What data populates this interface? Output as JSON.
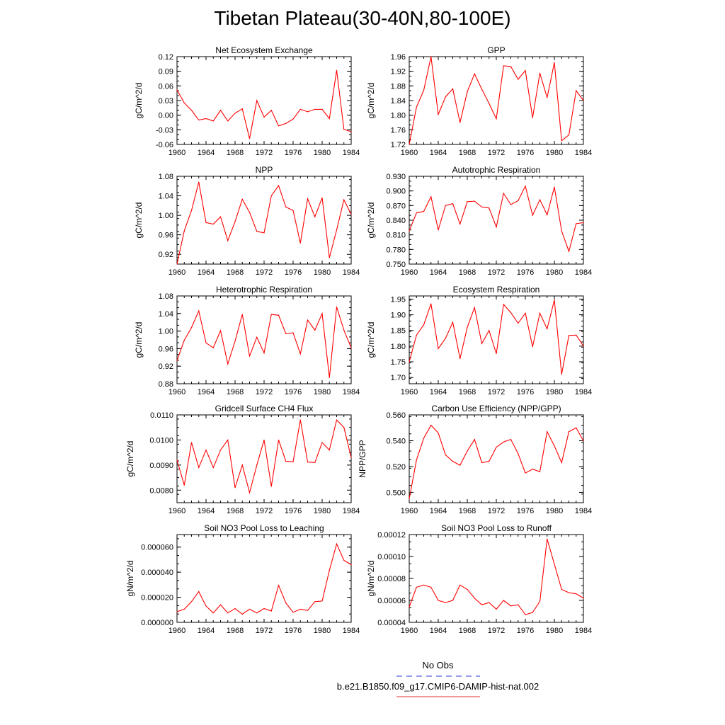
{
  "figure": {
    "title": "Tibetan Plateau(30-40N,80-100E)"
  },
  "legend": {
    "entries": [
      {
        "label": "No Obs",
        "color": "#3a3adc",
        "style": "dashed"
      },
      {
        "label": "b.e21.B1850.f09_g17.CMIP6-DAMIP-hist-nat.002",
        "color": "#e0303a",
        "style": "solid"
      }
    ]
  },
  "chart_data": [
    {
      "type": "line",
      "title": "Net Ecosystem Exchange",
      "ylabel": "gC/m^2/d",
      "xlim": [
        1960,
        1984
      ],
      "ylim": [
        -0.06,
        0.12
      ],
      "yticks": [
        "-0.06",
        "-0.03",
        "0.00",
        "0.03",
        "0.06",
        "0.09",
        "0.12"
      ],
      "xticks": [
        "1960",
        "1964",
        "1968",
        "1972",
        "1976",
        "1980",
        "1984"
      ],
      "color": "#ff0000",
      "x": [
        1960,
        1961,
        1962,
        1963,
        1964,
        1965,
        1966,
        1967,
        1968,
        1969,
        1970,
        1971,
        1972,
        1973,
        1974,
        1975,
        1976,
        1977,
        1978,
        1979,
        1980,
        1981,
        1982,
        1983,
        1984
      ],
      "values": [
        0.052,
        0.025,
        0.01,
        -0.01,
        -0.007,
        -0.012,
        0.01,
        -0.012,
        0.004,
        0.013,
        -0.048,
        0.03,
        -0.004,
        0.01,
        -0.022,
        -0.017,
        -0.008,
        0.012,
        0.007,
        0.012,
        0.012,
        -0.007,
        0.092,
        -0.029,
        -0.034
      ]
    },
    {
      "type": "line",
      "title": "GPP",
      "ylabel": "gC/m^2/d",
      "xlim": [
        1960,
        1984
      ],
      "ylim": [
        1.72,
        1.96
      ],
      "yticks": [
        "1.72",
        "1.76",
        "1.80",
        "1.84",
        "1.88",
        "1.92",
        "1.96"
      ],
      "xticks": [
        "1960",
        "1964",
        "1968",
        "1972",
        "1976",
        "1980",
        "1984"
      ],
      "color": "#ff0000",
      "x": [
        1960,
        1961,
        1962,
        1963,
        1964,
        1965,
        1966,
        1967,
        1968,
        1969,
        1970,
        1971,
        1972,
        1973,
        1974,
        1975,
        1976,
        1977,
        1978,
        1979,
        1980,
        1981,
        1982,
        1983,
        1984
      ],
      "values": [
        1.72,
        1.822,
        1.868,
        1.96,
        1.802,
        1.85,
        1.872,
        1.78,
        1.864,
        1.913,
        1.871,
        1.832,
        1.79,
        1.935,
        1.933,
        1.898,
        1.922,
        1.793,
        1.915,
        1.848,
        1.944,
        1.73,
        1.746,
        1.867,
        1.84
      ]
    },
    {
      "type": "line",
      "title": "NPP",
      "ylabel": "gC/m^2/d",
      "xlim": [
        1960,
        1984
      ],
      "ylim": [
        0.9,
        1.08
      ],
      "yticks": [
        "0.92",
        "0.96",
        "1.00",
        "1.04",
        "1.08"
      ],
      "xticks": [
        "1960",
        "1964",
        "1968",
        "1972",
        "1976",
        "1980",
        "1984"
      ],
      "color": "#ff0000",
      "x": [
        1960,
        1961,
        1962,
        1963,
        1964,
        1965,
        1966,
        1967,
        1968,
        1969,
        1970,
        1971,
        1972,
        1973,
        1974,
        1975,
        1976,
        1977,
        1978,
        1979,
        1980,
        1981,
        1982,
        1983,
        1984
      ],
      "values": [
        0.9,
        0.968,
        1.01,
        1.068,
        0.985,
        0.982,
        0.997,
        0.948,
        0.987,
        1.033,
        1.006,
        0.967,
        0.964,
        1.04,
        1.061,
        1.017,
        1.01,
        0.943,
        1.034,
        0.997,
        1.036,
        0.913,
        0.97,
        1.032,
        1.002
      ]
    },
    {
      "type": "line",
      "title": "Autotrophic Respiration",
      "ylabel": "gC/m^2/d",
      "xlim": [
        1960,
        1984
      ],
      "ylim": [
        0.75,
        0.93
      ],
      "yticks": [
        "0.750",
        "0.780",
        "0.810",
        "0.840",
        "0.870",
        "0.900",
        "0.930"
      ],
      "xticks": [
        "1960",
        "1964",
        "1968",
        "1972",
        "1976",
        "1980",
        "1984"
      ],
      "color": "#ff0000",
      "x": [
        1960,
        1961,
        1962,
        1963,
        1964,
        1965,
        1966,
        1967,
        1968,
        1969,
        1970,
        1971,
        1972,
        1973,
        1974,
        1975,
        1976,
        1977,
        1978,
        1979,
        1980,
        1981,
        1982,
        1983,
        1984
      ],
      "values": [
        0.818,
        0.855,
        0.858,
        0.888,
        0.82,
        0.87,
        0.874,
        0.832,
        0.878,
        0.879,
        0.867,
        0.865,
        0.826,
        0.895,
        0.872,
        0.88,
        0.91,
        0.85,
        0.882,
        0.851,
        0.908,
        0.818,
        0.776,
        0.833,
        0.835
      ]
    },
    {
      "type": "line",
      "title": "Heterotrophic Respiration",
      "ylabel": "gC/m^2/d",
      "xlim": [
        1960,
        1984
      ],
      "ylim": [
        0.88,
        1.08
      ],
      "yticks": [
        "0.88",
        "0.92",
        "0.96",
        "1.00",
        "1.04",
        "1.08"
      ],
      "xticks": [
        "1960",
        "1964",
        "1968",
        "1972",
        "1976",
        "1980",
        "1984"
      ],
      "color": "#ff0000",
      "x": [
        1960,
        1961,
        1962,
        1963,
        1964,
        1965,
        1966,
        1967,
        1968,
        1969,
        1970,
        1971,
        1972,
        1973,
        1974,
        1975,
        1976,
        1977,
        1978,
        1979,
        1980,
        1981,
        1982,
        1983,
        1984
      ],
      "values": [
        0.933,
        0.979,
        1.008,
        1.046,
        0.973,
        0.962,
        1.001,
        0.925,
        0.977,
        1.038,
        0.943,
        0.986,
        0.95,
        1.038,
        1.036,
        0.994,
        0.996,
        0.948,
        1.025,
        1.002,
        1.04,
        0.894,
        1.055,
        1.002,
        0.962
      ]
    },
    {
      "type": "line",
      "title": "Ecosystem Respiration",
      "ylabel": "gC/m^2/d",
      "xlim": [
        1960,
        1984
      ],
      "ylim": [
        1.68,
        1.96
      ],
      "yticks": [
        "1.70",
        "1.75",
        "1.80",
        "1.85",
        "1.90",
        "1.95"
      ],
      "xticks": [
        "1960",
        "1964",
        "1968",
        "1972",
        "1976",
        "1980",
        "1984"
      ],
      "color": "#ff0000",
      "x": [
        1960,
        1961,
        1962,
        1963,
        1964,
        1965,
        1966,
        1967,
        1968,
        1969,
        1970,
        1971,
        1972,
        1973,
        1974,
        1975,
        1976,
        1977,
        1978,
        1979,
        1980,
        1981,
        1982,
        1983,
        1984
      ],
      "values": [
        1.75,
        1.835,
        1.868,
        1.935,
        1.792,
        1.825,
        1.876,
        1.76,
        1.86,
        1.923,
        1.808,
        1.85,
        1.776,
        1.933,
        1.907,
        1.873,
        1.905,
        1.798,
        1.905,
        1.855,
        1.947,
        1.71,
        1.834,
        1.835,
        1.8
      ]
    },
    {
      "type": "line",
      "title": "Gridcell Surface CH4 Flux",
      "ylabel": "gC/m^2/d",
      "xlim": [
        1960,
        1984
      ],
      "ylim": [
        0.0075,
        0.011
      ],
      "yticks": [
        "0.0080",
        "0.0090",
        "0.0100",
        "0.0110"
      ],
      "xticks": [
        "1960",
        "1964",
        "1968",
        "1972",
        "1976",
        "1980",
        "1984"
      ],
      "color": "#ff0000",
      "x": [
        1960,
        1961,
        1962,
        1963,
        1964,
        1965,
        1966,
        1967,
        1968,
        1969,
        1970,
        1971,
        1972,
        1973,
        1974,
        1975,
        1976,
        1977,
        1978,
        1979,
        1980,
        1981,
        1982,
        1983,
        1984
      ],
      "values": [
        0.0092,
        0.0082,
        0.0099,
        0.0089,
        0.0096,
        0.0089,
        0.0096,
        0.01,
        0.0081,
        0.009,
        0.0079,
        0.009,
        0.01,
        0.00815,
        0.01,
        0.00915,
        0.00913,
        0.0108,
        0.00912,
        0.0091,
        0.0099,
        0.0096,
        0.0108,
        0.0105,
        0.0093
      ]
    },
    {
      "type": "line",
      "title": "Carbon Use Efficiency (NPP/GPP)",
      "ylabel": "NPP/GPP",
      "xlim": [
        1960,
        1984
      ],
      "ylim": [
        0.492,
        0.56
      ],
      "yticks": [
        "0.500",
        "0.520",
        "0.540",
        "0.560"
      ],
      "xticks": [
        "1960",
        "1964",
        "1968",
        "1972",
        "1976",
        "1980",
        "1984"
      ],
      "color": "#ff0000",
      "x": [
        1960,
        1961,
        1962,
        1963,
        1964,
        1965,
        1966,
        1967,
        1968,
        1969,
        1970,
        1971,
        1972,
        1973,
        1974,
        1975,
        1976,
        1977,
        1978,
        1979,
        1980,
        1981,
        1982,
        1983,
        1984
      ],
      "values": [
        0.495,
        0.525,
        0.542,
        0.552,
        0.546,
        0.529,
        0.524,
        0.521,
        0.532,
        0.541,
        0.523,
        0.524,
        0.535,
        0.539,
        0.541,
        0.53,
        0.515,
        0.518,
        0.516,
        0.547,
        0.536,
        0.523,
        0.547,
        0.55,
        0.54
      ]
    },
    {
      "type": "line",
      "title": "Soil NO3 Pool Loss to Leaching",
      "ylabel": "gN/m^2/d",
      "xlim": [
        1960,
        1984
      ],
      "ylim": [
        0,
        7e-05
      ],
      "yticks": [
        "0.000000",
        "0.000020",
        "0.000040",
        "0.000060"
      ],
      "xticks": [
        "1960",
        "1964",
        "1968",
        "1972",
        "1976",
        "1980",
        "1984"
      ],
      "color": "#ff0000",
      "x": [
        1960,
        1961,
        1962,
        1963,
        1964,
        1965,
        1966,
        1967,
        1968,
        1969,
        1970,
        1971,
        1972,
        1973,
        1974,
        1975,
        1976,
        1977,
        1978,
        1979,
        1980,
        1981,
        1982,
        1983,
        1984
      ],
      "values": [
        8.5e-06,
        1.05e-05,
        1.65e-05,
        2.45e-05,
        1.3e-05,
        7.5e-06,
        1.4e-05,
        7.5e-06,
        1.1e-05,
        6.5e-06,
        1.05e-05,
        7.5e-06,
        1.1e-05,
        9e-06,
        2.95e-05,
        1.55e-05,
        8e-06,
        1.05e-05,
        9.5e-06,
        1.65e-05,
        1.7e-05,
        4.15e-05,
        6.25e-05,
        4.95e-05,
        4.6e-05
      ]
    },
    {
      "type": "line",
      "title": "Soil NO3 Pool Loss to Runoff",
      "ylabel": "gN/m^2/d",
      "xlim": [
        1960,
        1984
      ],
      "ylim": [
        4e-05,
        0.00012
      ],
      "yticks": [
        "0.00004",
        "0.00006",
        "0.00008",
        "0.00010",
        "0.00012"
      ],
      "xticks": [
        "1960",
        "1964",
        "1968",
        "1972",
        "1976",
        "1980",
        "1984"
      ],
      "color": "#ff0000",
      "x": [
        1960,
        1961,
        1962,
        1963,
        1964,
        1965,
        1966,
        1967,
        1968,
        1969,
        1970,
        1971,
        1972,
        1973,
        1974,
        1975,
        1976,
        1977,
        1978,
        1979,
        1980,
        1981,
        1982,
        1983,
        1984
      ],
      "values": [
        5.4e-05,
        7.2e-05,
        7.4e-05,
        7.2e-05,
        6e-05,
        5.8e-05,
        6e-05,
        7.4e-05,
        7e-05,
        6.2e-05,
        5.6e-05,
        5.8e-05,
        5.2e-05,
        6e-05,
        5.5e-05,
        5.6e-05,
        4.7e-05,
        4.9e-05,
        5.9e-05,
        0.000116,
        9.3e-05,
        7e-05,
        6.7e-05,
        6.6e-05,
        6.2e-05
      ]
    }
  ]
}
